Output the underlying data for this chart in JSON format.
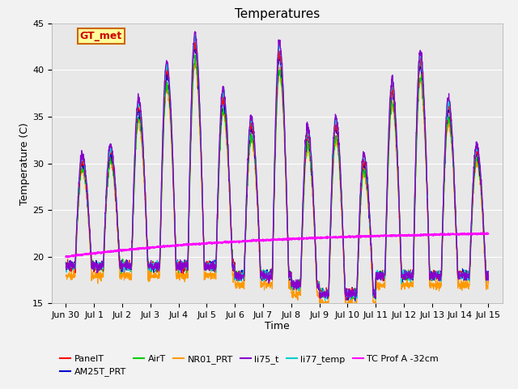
{
  "title": "Temperatures",
  "xlabel": "Time",
  "ylabel": "Temperature (C)",
  "ylim": [
    15,
    45
  ],
  "tick_labels": [
    "Jun 30",
    "Jul 1",
    "Jul 2",
    "Jul 3",
    "Jul 4",
    "Jul 5",
    "Jul 6",
    "Jul 7",
    "Jul 8",
    "Jul 9",
    "Jul 10",
    "Jul 11",
    "Jul 12",
    "Jul 13",
    "Jul 14",
    "Jul 15"
  ],
  "tick_positions": [
    0,
    1,
    2,
    3,
    4,
    5,
    6,
    7,
    8,
    9,
    10,
    11,
    12,
    13,
    14,
    15
  ],
  "annotation_text": "GT_met",
  "series_colors": {
    "PanelT": "#ff0000",
    "AM25T_PRT": "#0000cc",
    "AirT": "#00cc00",
    "NR01_PRT": "#ff9900",
    "li75_t": "#8800cc",
    "li77_temp": "#00cccc",
    "TC Prof A -32cm": "#ff00ff"
  },
  "background_color": "#e8e8e8",
  "figure_background": "#f2f2f2",
  "title_fontsize": 11,
  "label_fontsize": 9,
  "tick_fontsize": 8,
  "legend_fontsize": 8
}
